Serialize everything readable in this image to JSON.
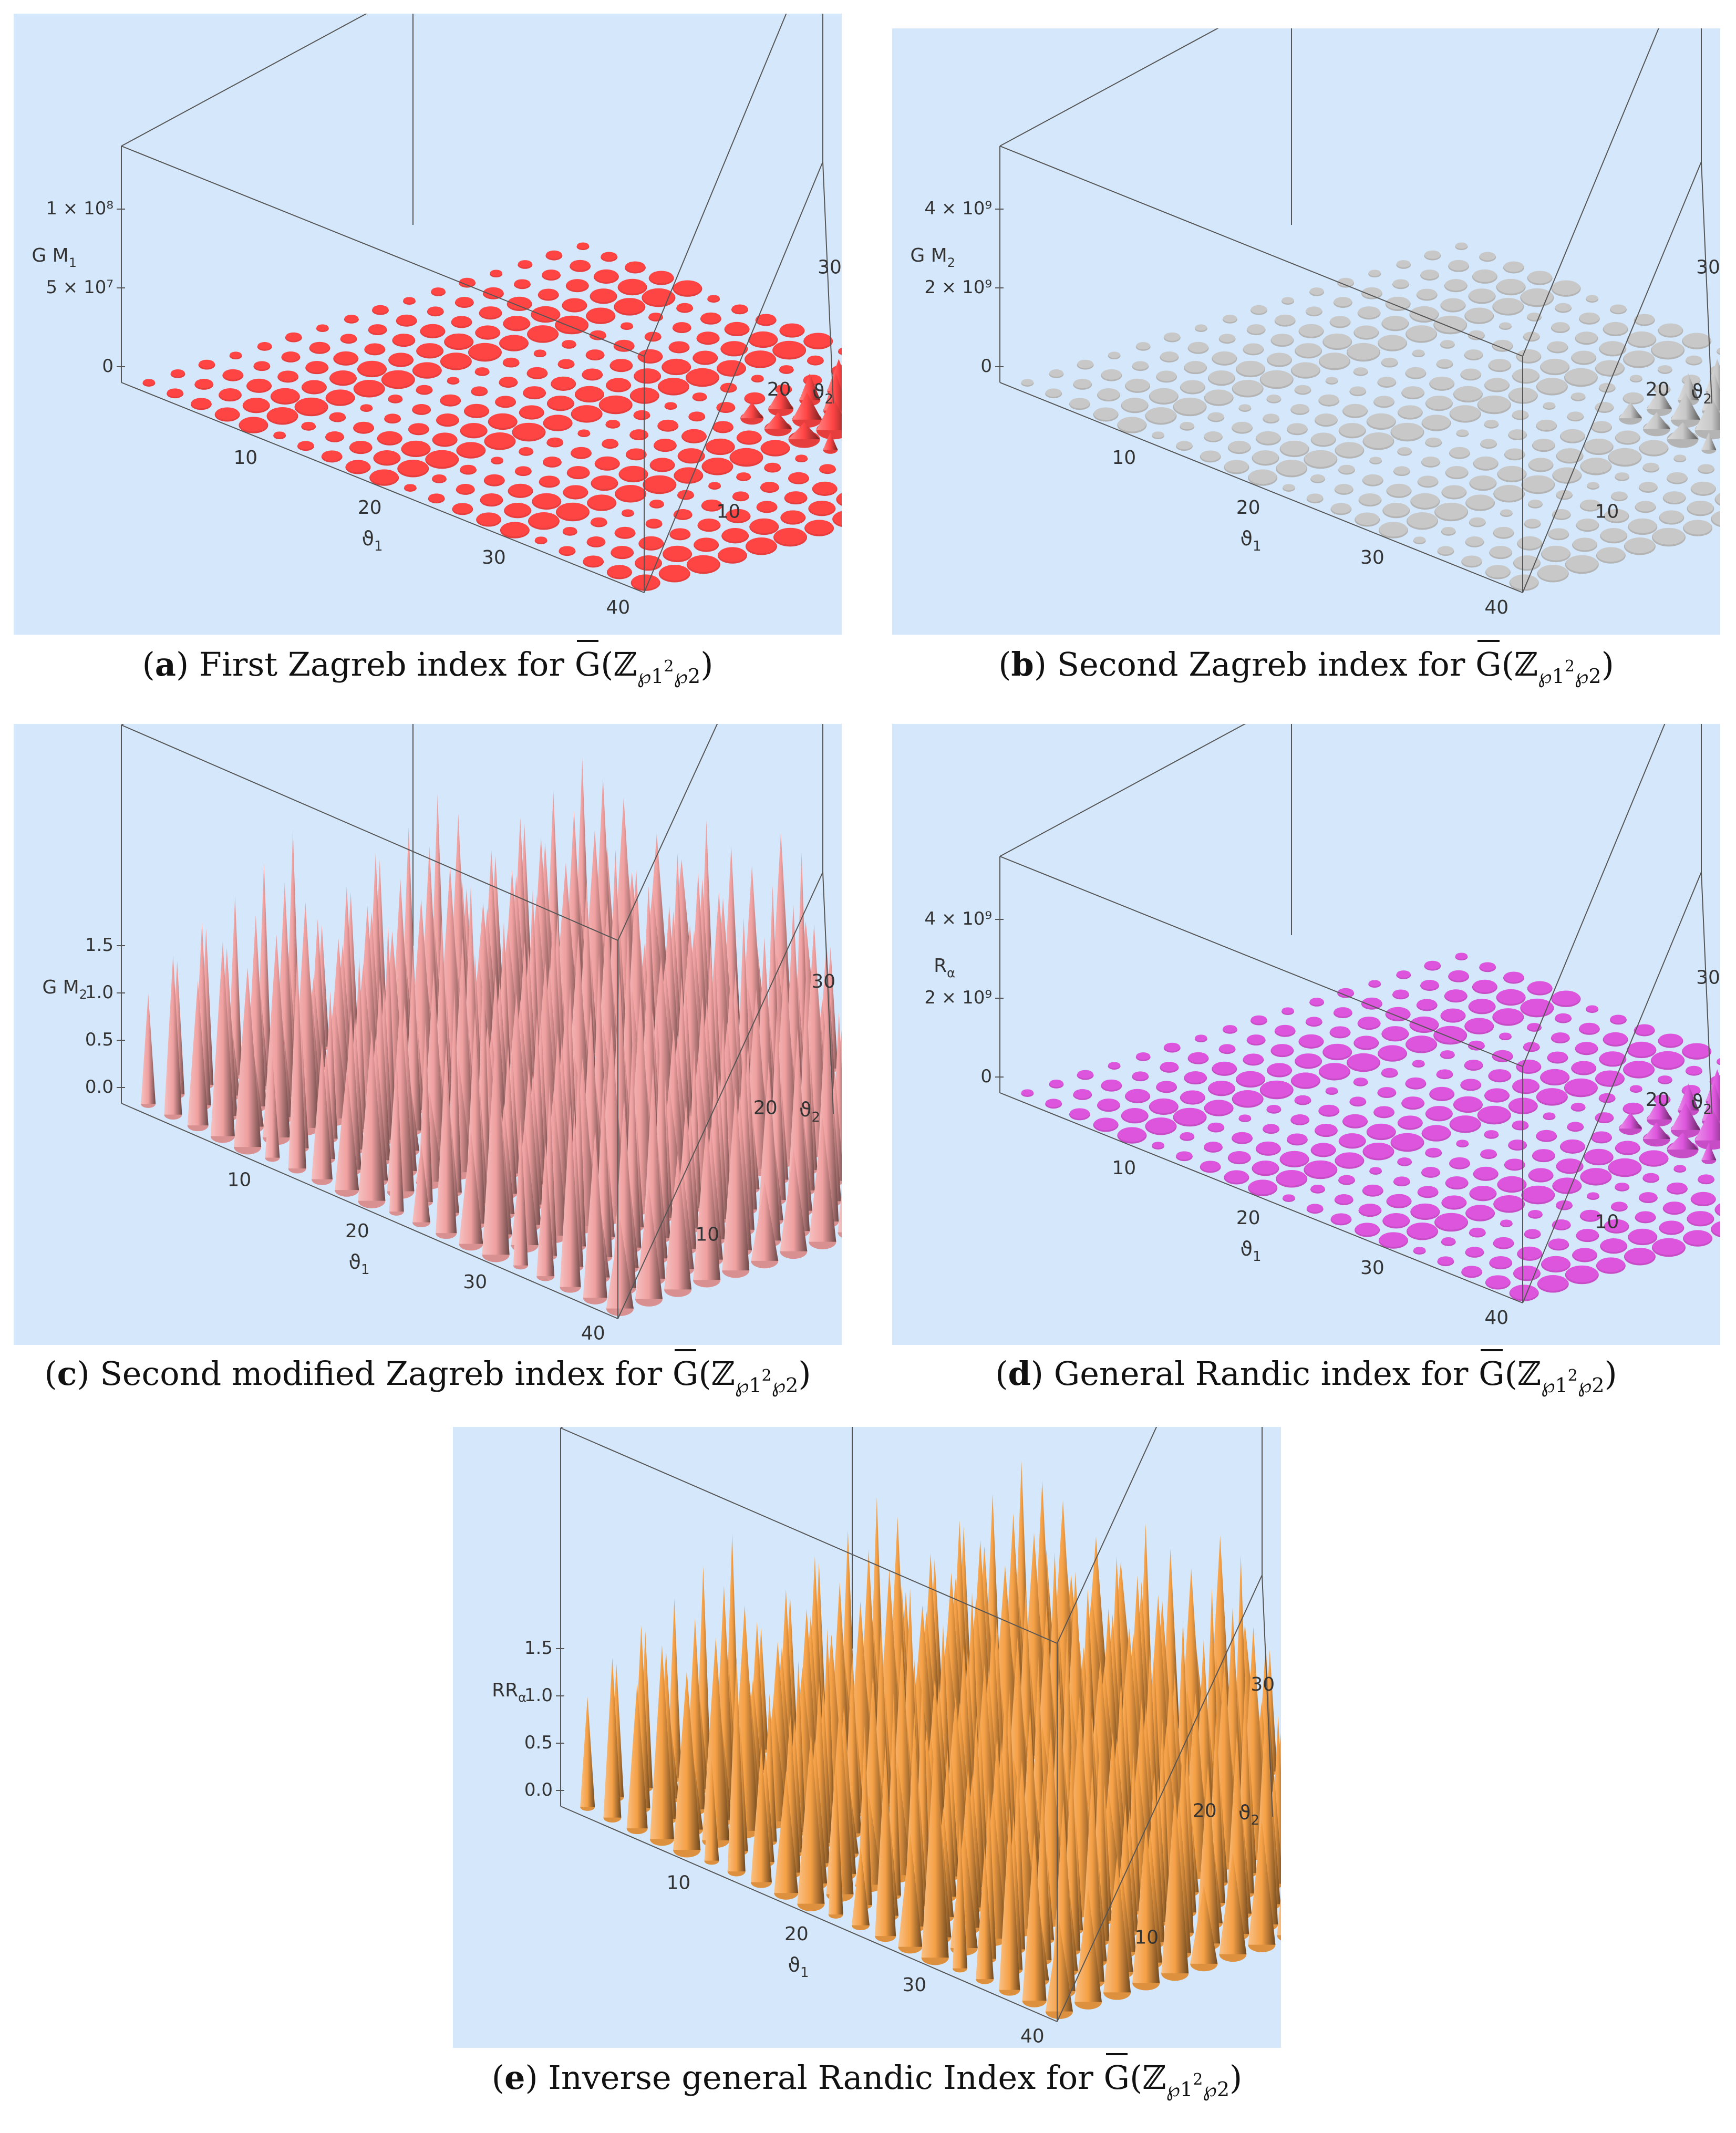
{
  "figures": [
    {
      "id": "a",
      "letter": "a",
      "caption_text": "First Zagreb index for",
      "zlabel": "G M",
      "zlabel_sub": "1",
      "zticks": [
        "1 × 10⁸",
        "5 × 10⁷",
        "0"
      ],
      "color": "#ff4444",
      "style": "flat"
    },
    {
      "id": "b",
      "letter": "b",
      "caption_text": "Second Zagreb index for",
      "zlabel": "G M",
      "zlabel_sub": "2",
      "zticks": [
        "4 × 10⁹",
        "2 × 10⁹",
        "0"
      ],
      "color": "#c8c8c8",
      "style": "flat"
    },
    {
      "id": "c",
      "letter": "c",
      "caption_text": "Second modified Zagreb index for",
      "zlabel": "G M",
      "zlabel_sub": "2",
      "zticks": [
        "1.5",
        "1.0",
        "0.5",
        "0.0"
      ],
      "color": "#f0a0a0",
      "style": "spiky"
    },
    {
      "id": "d",
      "letter": "d",
      "caption_text": "General Randic index for",
      "zlabel": "R",
      "zlabel_sub": "α",
      "zticks": [
        "4 × 10⁹",
        "2 × 10⁹",
        "0"
      ],
      "color": "#dd55dd",
      "style": "flat"
    },
    {
      "id": "e",
      "letter": "e",
      "caption_text": "Inverse general Randic Index for",
      "zlabel": "RR",
      "zlabel_sub": "α",
      "zticks": [
        "1.5",
        "1.0",
        "0.5",
        "0.0"
      ],
      "color": "#f5a045",
      "style": "spiky"
    }
  ],
  "axes": {
    "x_label": "ϑ",
    "x_label_sub": "1",
    "y_label": "ϑ",
    "y_label_sub": "2",
    "x_ticks": [
      "10",
      "20",
      "30",
      "40"
    ],
    "y_ticks": [
      "10",
      "20",
      "30"
    ]
  },
  "caption_math": {
    "G": "G",
    "Z": "ℤ",
    "p": "℘",
    "sub1": "1",
    "sup2": "2",
    "sub2": "2"
  },
  "chart_data": [
    {
      "type": "3d-cone",
      "panel": "a",
      "xrange": [
        1,
        40
      ],
      "yrange": [
        1,
        33
      ],
      "zlabel": "G M1",
      "zticks": [
        0,
        50000000,
        100000000
      ]
    },
    {
      "type": "3d-cone",
      "panel": "b",
      "xrange": [
        1,
        40
      ],
      "yrange": [
        1,
        33
      ],
      "zlabel": "G M2",
      "zticks": [
        0,
        2000000000,
        4000000000
      ]
    },
    {
      "type": "3d-cone",
      "panel": "c",
      "xrange": [
        1,
        40
      ],
      "yrange": [
        1,
        33
      ],
      "zlabel": "G M2",
      "zticks": [
        0.0,
        0.5,
        1.0,
        1.5
      ]
    },
    {
      "type": "3d-cone",
      "panel": "d",
      "xrange": [
        1,
        40
      ],
      "yrange": [
        1,
        33
      ],
      "zlabel": "Rα",
      "zticks": [
        0,
        2000000000,
        4000000000
      ]
    },
    {
      "type": "3d-cone",
      "panel": "e",
      "xrange": [
        1,
        40
      ],
      "yrange": [
        1,
        33
      ],
      "zlabel": "RRα",
      "zticks": [
        0.0,
        0.5,
        1.0,
        1.5
      ]
    }
  ]
}
